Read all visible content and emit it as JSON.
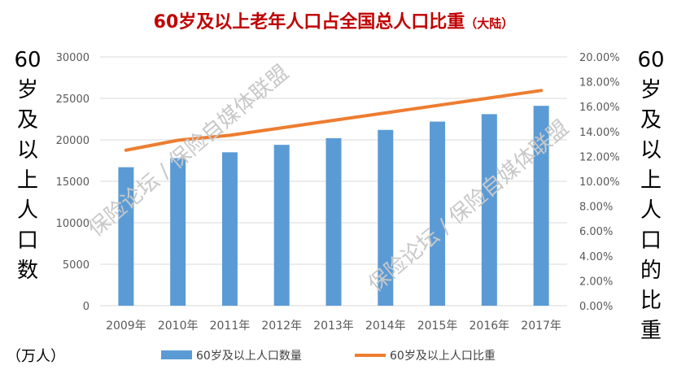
{
  "chart_data": {
    "type": "bar",
    "title": "60岁及以上老年人口占全国总人口比重",
    "title_suffix": "（大陆）",
    "categories": [
      "2009年",
      "2010年",
      "2011年",
      "2012年",
      "2013年",
      "2014年",
      "2015年",
      "2016年",
      "2017年"
    ],
    "series": [
      {
        "name": "60岁及以上人口数量",
        "type": "bar",
        "axis": "left",
        "color": "#5b9bd5",
        "values": [
          16700,
          17800,
          18500,
          19400,
          20200,
          21200,
          22200,
          23100,
          24100
        ]
      },
      {
        "name": "60岁及以上人口比重",
        "type": "line",
        "axis": "right",
        "color": "#ed7d31",
        "values": [
          12.5,
          13.3,
          13.7,
          14.3,
          14.9,
          15.5,
          16.1,
          16.7,
          17.3
        ]
      }
    ],
    "ylabel_left": "60岁及以上人口数",
    "ylabel_left_unit": "（万人）",
    "ylabel_right": "60岁及以上人口的比重",
    "ylim_left": [
      0,
      30000
    ],
    "yticks_left": [
      "0",
      "5000",
      "10000",
      "15000",
      "20000",
      "25000",
      "30000"
    ],
    "ylim_right": [
      0,
      20
    ],
    "yticks_right": [
      "0.00%",
      "2.00%",
      "4.00%",
      "6.00%",
      "8.00%",
      "10.00%",
      "12.00%",
      "14.00%",
      "16.00%",
      "18.00%",
      "20.00%"
    ],
    "grid": true,
    "legend_position": "bottom",
    "watermarks": [
      "保险论坛 / 保险自媒体联盟",
      "保险论坛 / 保险自媒体联盟"
    ]
  }
}
